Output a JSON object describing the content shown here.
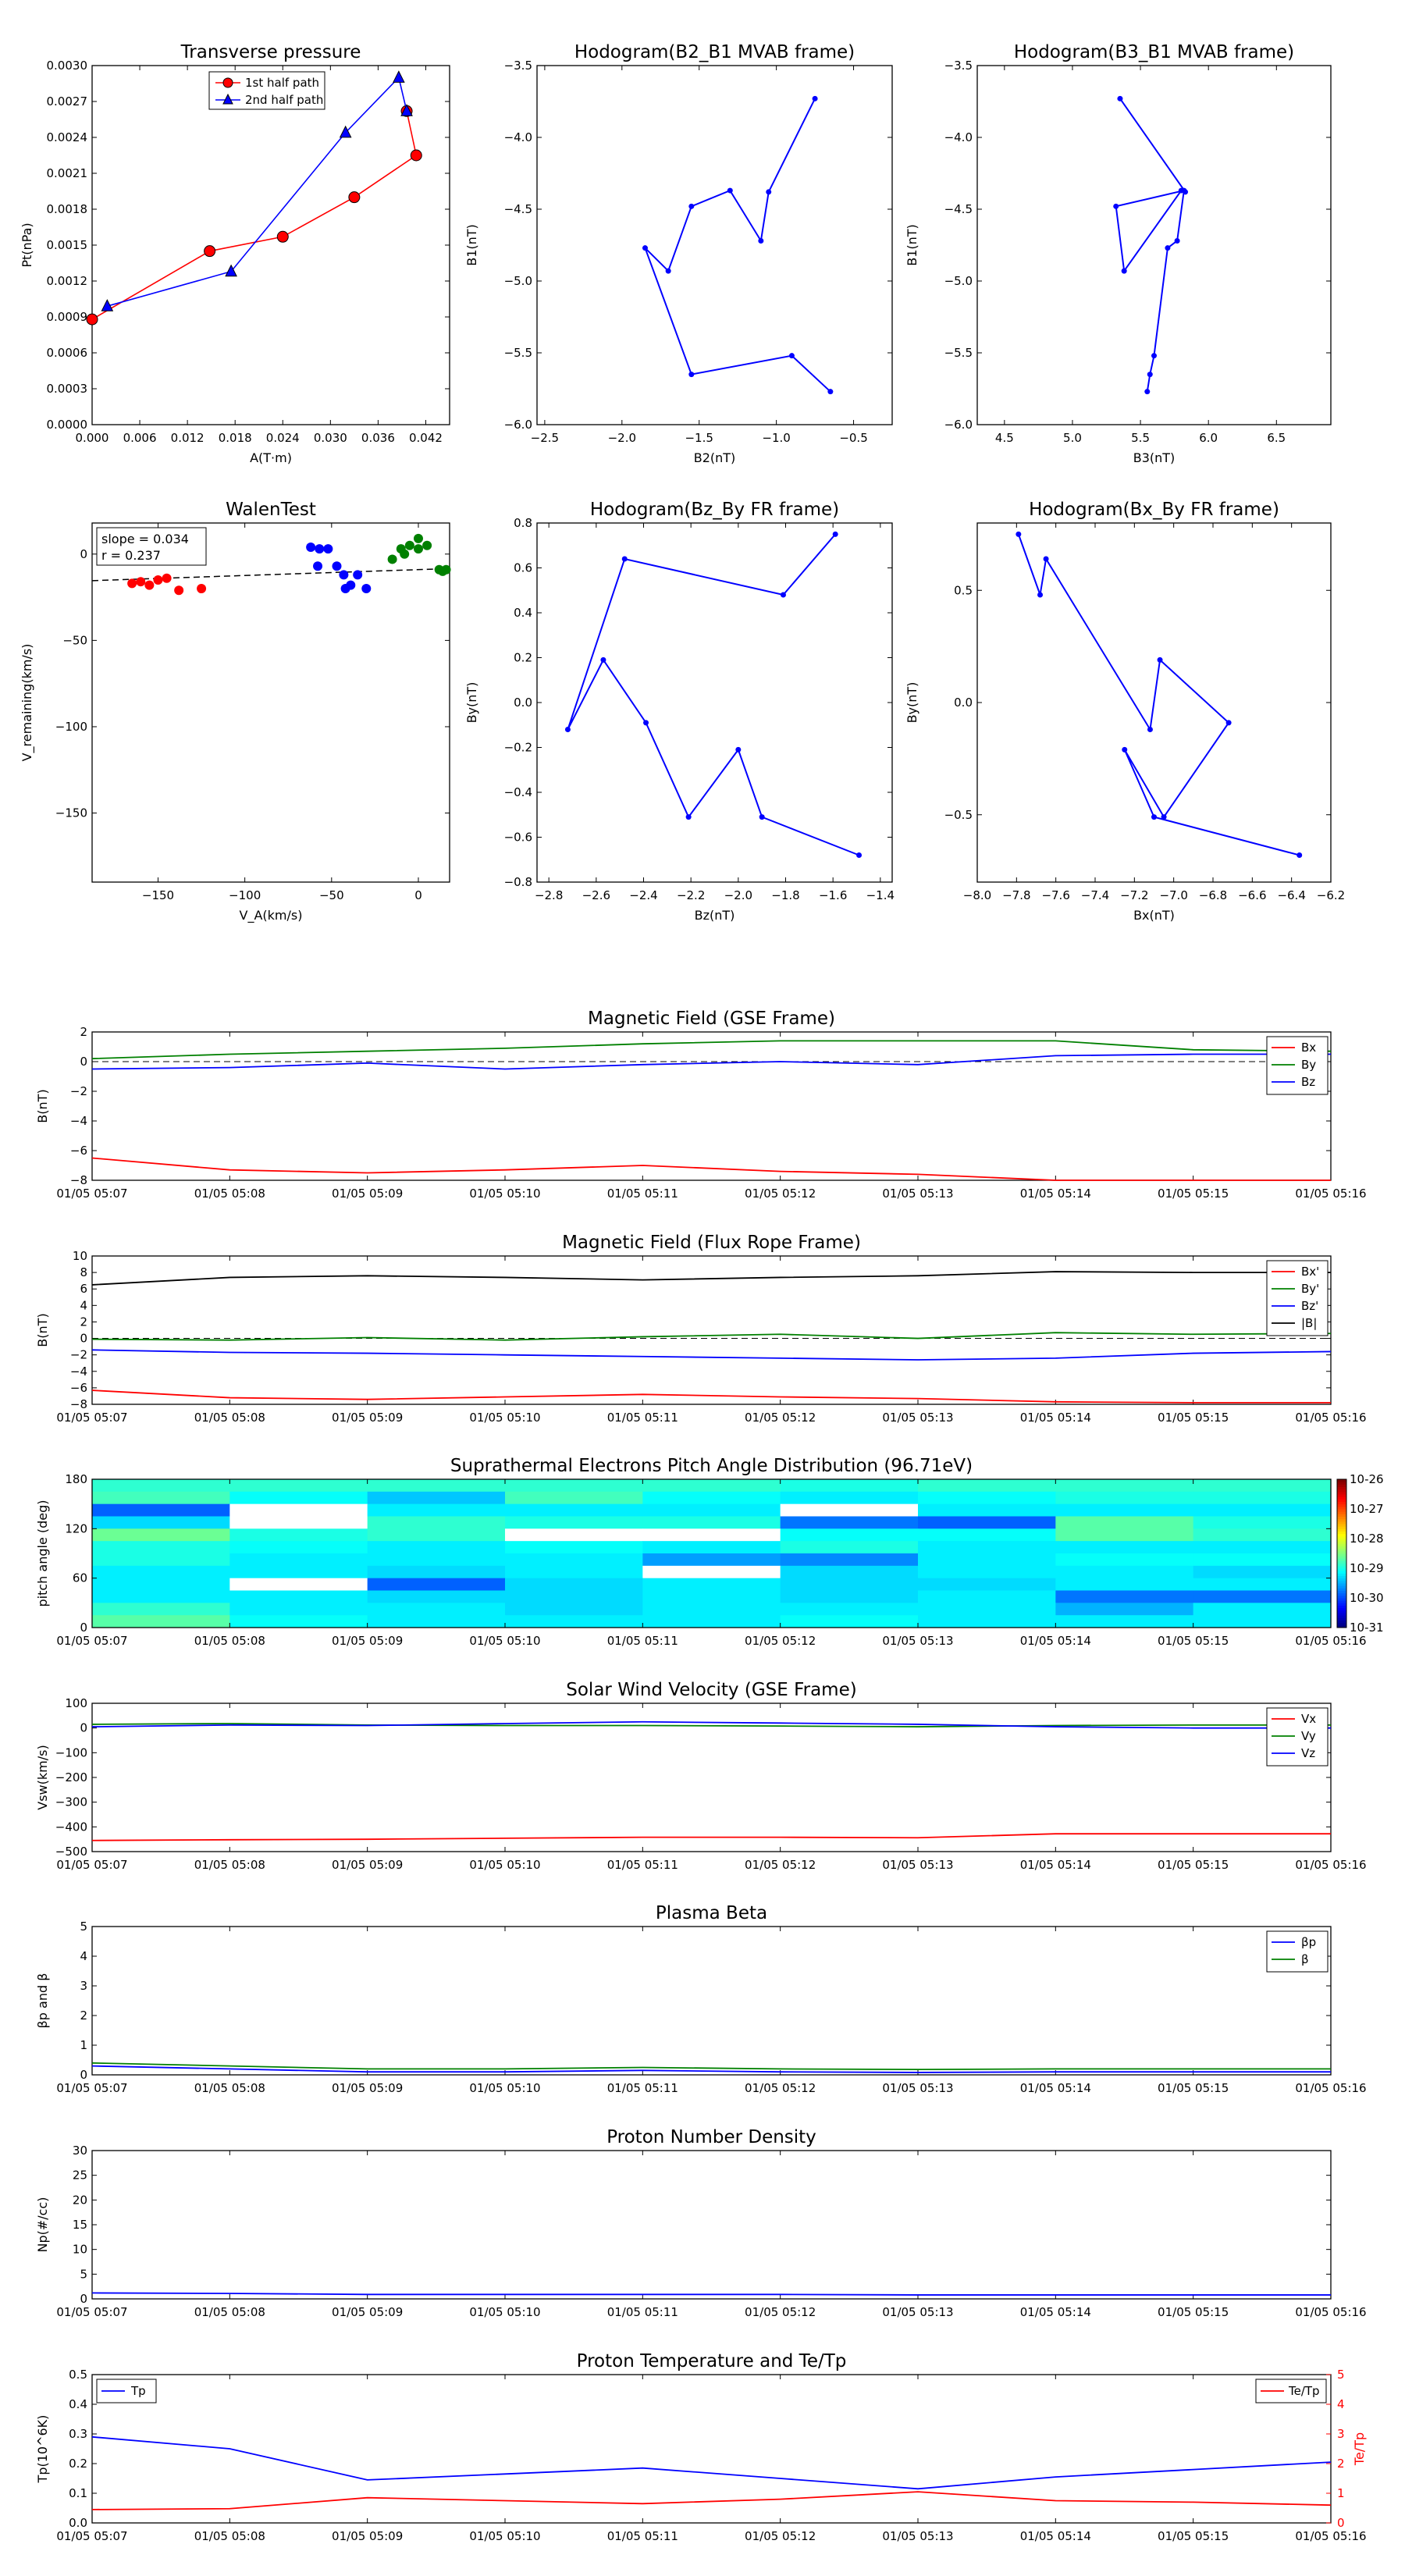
{
  "time_ticks": [
    "01/05 05:07",
    "01/05 05:08",
    "01/05 05:09",
    "01/05 05:10",
    "01/05 05:11",
    "01/05 05:12",
    "01/05 05:13",
    "01/05 05:14",
    "01/05 05:15",
    "01/05 05:16"
  ],
  "colors": {
    "red": "#ff0000",
    "green": "#008000",
    "blue": "#0000ff",
    "black": "#000000"
  },
  "chart_data": [
    {
      "id": "tp",
      "type": "line",
      "title": "Transverse pressure",
      "xlabel": "A(T·m)",
      "ylabel": "Pt(nPa)",
      "xlim": [
        0,
        0.045
      ],
      "ylim": [
        0,
        0.003
      ],
      "xticks": [
        "0.000",
        "0.006",
        "0.012",
        "0.018",
        "0.024",
        "0.030",
        "0.036",
        "0.042"
      ],
      "yticks": [
        "0.0000",
        "0.0003",
        "0.0006",
        "0.0009",
        "0.0012",
        "0.0015",
        "0.0018",
        "0.0021",
        "0.0024",
        "0.0027",
        "0.0030"
      ],
      "legend": [
        "1st half path",
        "2nd half path"
      ],
      "series": [
        {
          "name": "1st half path",
          "marker": "circle",
          "x": [
            0.0,
            0.0148,
            0.024,
            0.033,
            0.0408,
            0.0396
          ],
          "y": [
            0.00088,
            0.00145,
            0.00157,
            0.0019,
            0.00225,
            0.00262
          ]
        },
        {
          "name": "2nd half path",
          "marker": "triangle",
          "x": [
            0.0396,
            0.0386,
            0.0319,
            0.0175,
            0.0019
          ],
          "y": [
            0.00262,
            0.0029,
            0.00244,
            0.00128,
            0.00099
          ]
        }
      ]
    },
    {
      "id": "h21",
      "type": "line",
      "title": "Hodogram(B2_B1 MVAB frame)",
      "xlabel": "B2(nT)",
      "ylabel": "B1(nT)",
      "xlim": [
        -2.55,
        -0.25
      ],
      "ylim": [
        -6.0,
        -3.5
      ],
      "xticks": [
        "−2.5",
        "−2.0",
        "−1.5",
        "−1.0",
        "−0.5"
      ],
      "yticks": [
        "−6.0",
        "−5.5",
        "−5.0",
        "−4.5",
        "−4.0",
        "−3.5"
      ],
      "series": [
        {
          "x": [
            -0.75,
            -1.05,
            -1.1,
            -1.3,
            -1.55,
            -1.7,
            -1.85,
            -1.55,
            -0.9,
            -0.65
          ],
          "y": [
            -3.73,
            -4.38,
            -4.72,
            -4.37,
            -4.48,
            -4.93,
            -4.77,
            -5.65,
            -5.52,
            -5.77
          ]
        }
      ]
    },
    {
      "id": "h31",
      "type": "line",
      "title": "Hodogram(B3_B1 MVAB frame)",
      "xlabel": "B3(nT)",
      "ylabel": "B1(nT)",
      "xlim": [
        4.3,
        6.9
      ],
      "ylim": [
        -6.0,
        -3.5
      ],
      "xticks": [
        "4.5",
        "5.0",
        "5.5",
        "6.0",
        "6.5"
      ],
      "yticks": [
        "−6.0",
        "−5.5",
        "−5.0",
        "−4.5",
        "−4.0",
        "−3.5"
      ],
      "series": [
        {
          "x": [
            5.35,
            5.83,
            5.8,
            5.38,
            5.32,
            5.82,
            5.77,
            5.7,
            5.6,
            5.57,
            5.55
          ],
          "y": [
            -3.73,
            -4.38,
            -4.37,
            -4.93,
            -4.48,
            -4.37,
            -4.72,
            -4.77,
            -5.52,
            -5.65,
            -5.77
          ]
        }
      ]
    },
    {
      "id": "walen",
      "type": "scatter",
      "title": "WalenTest",
      "xlabel": "V_A(km/s)",
      "ylabel": "V_remaining(km/s)",
      "xlim": [
        -188,
        18
      ],
      "ylim": [
        -190,
        18
      ],
      "xticks": [
        "−150",
        "−100",
        "−50",
        "0"
      ],
      "yticks": [
        "−150",
        "−100",
        "−50",
        "0"
      ],
      "annotation": [
        "slope = 0.034",
        "r = 0.237"
      ],
      "fit": {
        "slope": 0.034,
        "intercept": -9
      },
      "series": [
        {
          "color": "red",
          "x": [
            -165,
            -160,
            -155,
            -150,
            -145,
            -138,
            -125
          ],
          "y": [
            -17,
            -16,
            -18,
            -15,
            -14,
            -21,
            -20
          ]
        },
        {
          "color": "blue",
          "x": [
            -62,
            -57,
            -52,
            -47,
            -43,
            -39,
            -35,
            -42,
            -30,
            -58
          ],
          "y": [
            4,
            3,
            3,
            -7,
            -12,
            -18,
            -12,
            -20,
            -20,
            -7
          ]
        },
        {
          "color": "green",
          "x": [
            -10,
            -5,
            0,
            5,
            -8,
            0,
            12,
            16,
            14,
            -15
          ],
          "y": [
            3,
            5,
            9,
            5,
            0,
            3,
            -9,
            -9,
            -10,
            -3
          ]
        }
      ]
    },
    {
      "id": "hfr1",
      "type": "line",
      "title": "Hodogram(Bz_By FR frame)",
      "xlabel": "Bz(nT)",
      "ylabel": "By(nT)",
      "xlim": [
        -2.85,
        -1.35
      ],
      "ylim": [
        -0.8,
        0.8
      ],
      "xticks": [
        "−2.8",
        "−2.6",
        "−2.4",
        "−2.2",
        "−2.0",
        "−1.8",
        "−1.6",
        "−1.4"
      ],
      "yticks": [
        "−0.8",
        "−0.6",
        "−0.4",
        "−0.2",
        "0.0",
        "0.2",
        "0.4",
        "0.6",
        "0.8"
      ],
      "series": [
        {
          "x": [
            -1.59,
            -1.81,
            -2.48,
            -2.72,
            -2.57,
            -2.39,
            -2.21,
            -2.0,
            -1.9,
            -1.49
          ],
          "y": [
            0.75,
            0.48,
            0.64,
            -0.12,
            0.19,
            -0.09,
            -0.51,
            -0.21,
            -0.51,
            -0.68
          ]
        }
      ]
    },
    {
      "id": "hfr2",
      "type": "line",
      "title": "Hodogram(Bx_By FR frame)",
      "xlabel": "Bx(nT)",
      "ylabel": "By(nT)",
      "xlim": [
        -8.0,
        -6.2
      ],
      "ylim": [
        -0.8,
        0.8
      ],
      "xticks": [
        "−8.0",
        "−7.8",
        "−7.6",
        "−7.4",
        "−7.2",
        "−7.0",
        "−6.8",
        "−6.6",
        "−6.4",
        "−6.2"
      ],
      "yticks": [
        "−0.5",
        "0.0",
        "0.5"
      ],
      "series": [
        {
          "x": [
            -7.79,
            -7.68,
            -7.65,
            -7.12,
            -7.07,
            -6.72,
            -7.05,
            -7.25,
            -7.1,
            -6.36
          ],
          "y": [
            0.75,
            0.48,
            0.64,
            -0.12,
            0.19,
            -0.09,
            -0.51,
            -0.21,
            -0.51,
            -0.68
          ]
        }
      ]
    },
    {
      "id": "bgse",
      "type": "line",
      "title": "Magnetic Field (GSE Frame)",
      "ylabel": "B(nT)",
      "ylim": [
        -8,
        2
      ],
      "yticks": [
        "2",
        "0",
        "−2",
        "−4",
        "−6",
        "−8"
      ],
      "legend": [
        "Bx",
        "By",
        "Bz"
      ],
      "series": [
        {
          "name": "Bx",
          "color": "red",
          "y": [
            -6.5,
            -7.3,
            -7.5,
            -7.3,
            -7.0,
            -7.4,
            -7.6,
            -8.0,
            -8.0,
            -8.0
          ]
        },
        {
          "name": "By",
          "color": "green",
          "y": [
            0.2,
            0.5,
            0.7,
            0.9,
            1.2,
            1.4,
            1.4,
            1.4,
            0.8,
            0.7
          ]
        },
        {
          "name": "Bz",
          "color": "blue",
          "y": [
            -0.5,
            -0.4,
            -0.1,
            -0.5,
            -0.2,
            0.0,
            -0.2,
            0.4,
            0.5,
            0.5
          ]
        }
      ]
    },
    {
      "id": "bfr",
      "type": "line",
      "title": "Magnetic Field (Flux Rope Frame)",
      "ylabel": "B(nT)",
      "ylim": [
        -8,
        10
      ],
      "yticks": [
        "10",
        "8",
        "6",
        "4",
        "2",
        "0",
        "−2",
        "−4",
        "−6",
        "−8"
      ],
      "legend": [
        "Bx'",
        "By'",
        "Bz'",
        "|B|"
      ],
      "series": [
        {
          "name": "Bx'",
          "color": "red",
          "y": [
            -6.3,
            -7.2,
            -7.4,
            -7.1,
            -6.8,
            -7.1,
            -7.3,
            -7.7,
            -7.8,
            -7.8
          ]
        },
        {
          "name": "By'",
          "color": "green",
          "y": [
            -0.1,
            -0.2,
            0.1,
            -0.2,
            0.2,
            0.5,
            0.0,
            0.7,
            0.5,
            0.6
          ]
        },
        {
          "name": "Bz'",
          "color": "blue",
          "y": [
            -1.4,
            -1.7,
            -1.8,
            -2.0,
            -2.2,
            -2.4,
            -2.6,
            -2.4,
            -1.8,
            -1.6
          ]
        },
        {
          "name": "|B|",
          "color": "black",
          "y": [
            6.5,
            7.4,
            7.6,
            7.4,
            7.1,
            7.4,
            7.6,
            8.1,
            8.0,
            8.0
          ]
        }
      ]
    },
    {
      "id": "pad",
      "type": "heatmap",
      "title": "Suprathermal Electrons Pitch Angle Distribution (96.71eV)",
      "ylabel": "pitch angle (deg)",
      "ylim": [
        0,
        180
      ],
      "yticks": [
        "180",
        "120",
        "60",
        "0"
      ],
      "colorbar_ticks": [
        "10-26",
        "10-27",
        "10-28",
        "10-29",
        "10-30",
        "10-31"
      ],
      "colorbar_range": [
        -31,
        -26
      ],
      "values": [
        [
          -28.9,
          -28.9,
          -28.9,
          -28.9,
          -28.9,
          -29.0,
          -28.9,
          -28.9,
          -28.9
        ],
        [
          -28.8,
          -29.1,
          -29.4,
          -28.8,
          -29.1,
          -29.2,
          -29.1,
          -29.0,
          -29.0
        ],
        [
          -29.9,
          -99,
          -29.2,
          -29.2,
          -29.2,
          -99,
          -29.2,
          -29.2,
          -29.2
        ],
        [
          -29.3,
          -99,
          -28.9,
          -29.0,
          -29.0,
          -29.8,
          -29.9,
          -28.7,
          -29.0
        ],
        [
          -28.6,
          -29.0,
          -28.9,
          -99,
          -99,
          -29.1,
          -29.1,
          -28.7,
          -28.9
        ],
        [
          -29.0,
          -29.1,
          -29.2,
          -29.1,
          -29.2,
          -29.0,
          -29.2,
          -29.2,
          -29.2
        ],
        [
          -29.0,
          -29.2,
          -29.2,
          -29.2,
          -29.6,
          -29.7,
          -29.2,
          -29.1,
          -29.1
        ],
        [
          -29.2,
          -29.2,
          -29.3,
          -29.2,
          -99,
          -29.3,
          -29.2,
          -29.2,
          -29.3
        ],
        [
          -29.2,
          -99,
          -29.9,
          -29.3,
          -29.2,
          -29.3,
          -29.3,
          -29.2,
          -29.2
        ],
        [
          -29.2,
          -29.2,
          -29.3,
          -29.3,
          -29.2,
          -29.3,
          -29.2,
          -29.8,
          -29.8
        ],
        [
          -28.9,
          -29.2,
          -29.2,
          -29.3,
          -29.2,
          -29.2,
          -29.2,
          -29.5,
          -29.2
        ],
        [
          -28.7,
          -29.1,
          -29.2,
          -29.2,
          -29.2,
          -29.1,
          -29.2,
          -29.2,
          -29.2
        ]
      ]
    },
    {
      "id": "vsw",
      "type": "line",
      "title": "Solar Wind Velocity (GSE Frame)",
      "ylabel": "Vsw(km/s)",
      "ylim": [
        -500,
        100
      ],
      "yticks": [
        "100",
        "0",
        "−100",
        "−200",
        "−300",
        "−400",
        "−500"
      ],
      "legend": [
        "Vx",
        "Vy",
        "Vz"
      ],
      "series": [
        {
          "name": "Vx",
          "color": "red",
          "y": [
            -455,
            -452,
            -450,
            -446,
            -442,
            -442,
            -444,
            -428,
            -428,
            -428
          ]
        },
        {
          "name": "Vy",
          "color": "green",
          "y": [
            15,
            18,
            12,
            10,
            10,
            8,
            5,
            10,
            12,
            12
          ]
        },
        {
          "name": "Vz",
          "color": "blue",
          "y": [
            5,
            12,
            10,
            18,
            25,
            20,
            15,
            5,
            0,
            0
          ]
        }
      ]
    },
    {
      "id": "beta",
      "type": "line",
      "title": "Plasma Beta",
      "ylabel": "βp and β",
      "ylim": [
        0,
        5
      ],
      "yticks": [
        "5",
        "4",
        "3",
        "2",
        "1",
        "0"
      ],
      "legend": [
        "βp",
        "β"
      ],
      "series": [
        {
          "name": "βp",
          "color": "blue",
          "y": [
            0.3,
            0.2,
            0.1,
            0.1,
            0.15,
            0.1,
            0.08,
            0.1,
            0.1,
            0.1
          ]
        },
        {
          "name": "β",
          "color": "green",
          "y": [
            0.4,
            0.3,
            0.2,
            0.2,
            0.25,
            0.2,
            0.18,
            0.2,
            0.2,
            0.2
          ]
        }
      ]
    },
    {
      "id": "np",
      "type": "line",
      "title": "Proton Number Density",
      "ylabel": "Np(#/cc)",
      "ylim": [
        0,
        30
      ],
      "yticks": [
        "30",
        "25",
        "20",
        "15",
        "10",
        "5",
        "0"
      ],
      "series": [
        {
          "color": "blue",
          "y": [
            1.2,
            1.1,
            0.9,
            0.9,
            0.9,
            0.9,
            0.8,
            0.8,
            0.8,
            0.8
          ]
        }
      ]
    },
    {
      "id": "temp",
      "type": "line",
      "title": "Proton Temperature and Te/Tp",
      "ylabel": "Tp(10^6K)",
      "y2label": "Te/Tp",
      "ylim": [
        0,
        0.5
      ],
      "y2lim": [
        0,
        5
      ],
      "yticks": [
        "0.5",
        "0.4",
        "0.3",
        "0.2",
        "0.1",
        "0.0"
      ],
      "y2ticks": [
        "5",
        "4",
        "3",
        "2",
        "1",
        "0"
      ],
      "legend": [
        "Tp"
      ],
      "legend2": [
        "Te/Tp"
      ],
      "series": [
        {
          "name": "Tp",
          "color": "blue",
          "y": [
            0.29,
            0.25,
            0.145,
            0.165,
            0.185,
            0.15,
            0.115,
            0.155,
            0.18,
            0.205
          ]
        },
        {
          "name": "Te/Tp",
          "color": "red",
          "axis": "right",
          "y": [
            0.45,
            0.48,
            0.85,
            0.75,
            0.65,
            0.8,
            1.05,
            0.75,
            0.7,
            0.6
          ]
        }
      ]
    }
  ]
}
